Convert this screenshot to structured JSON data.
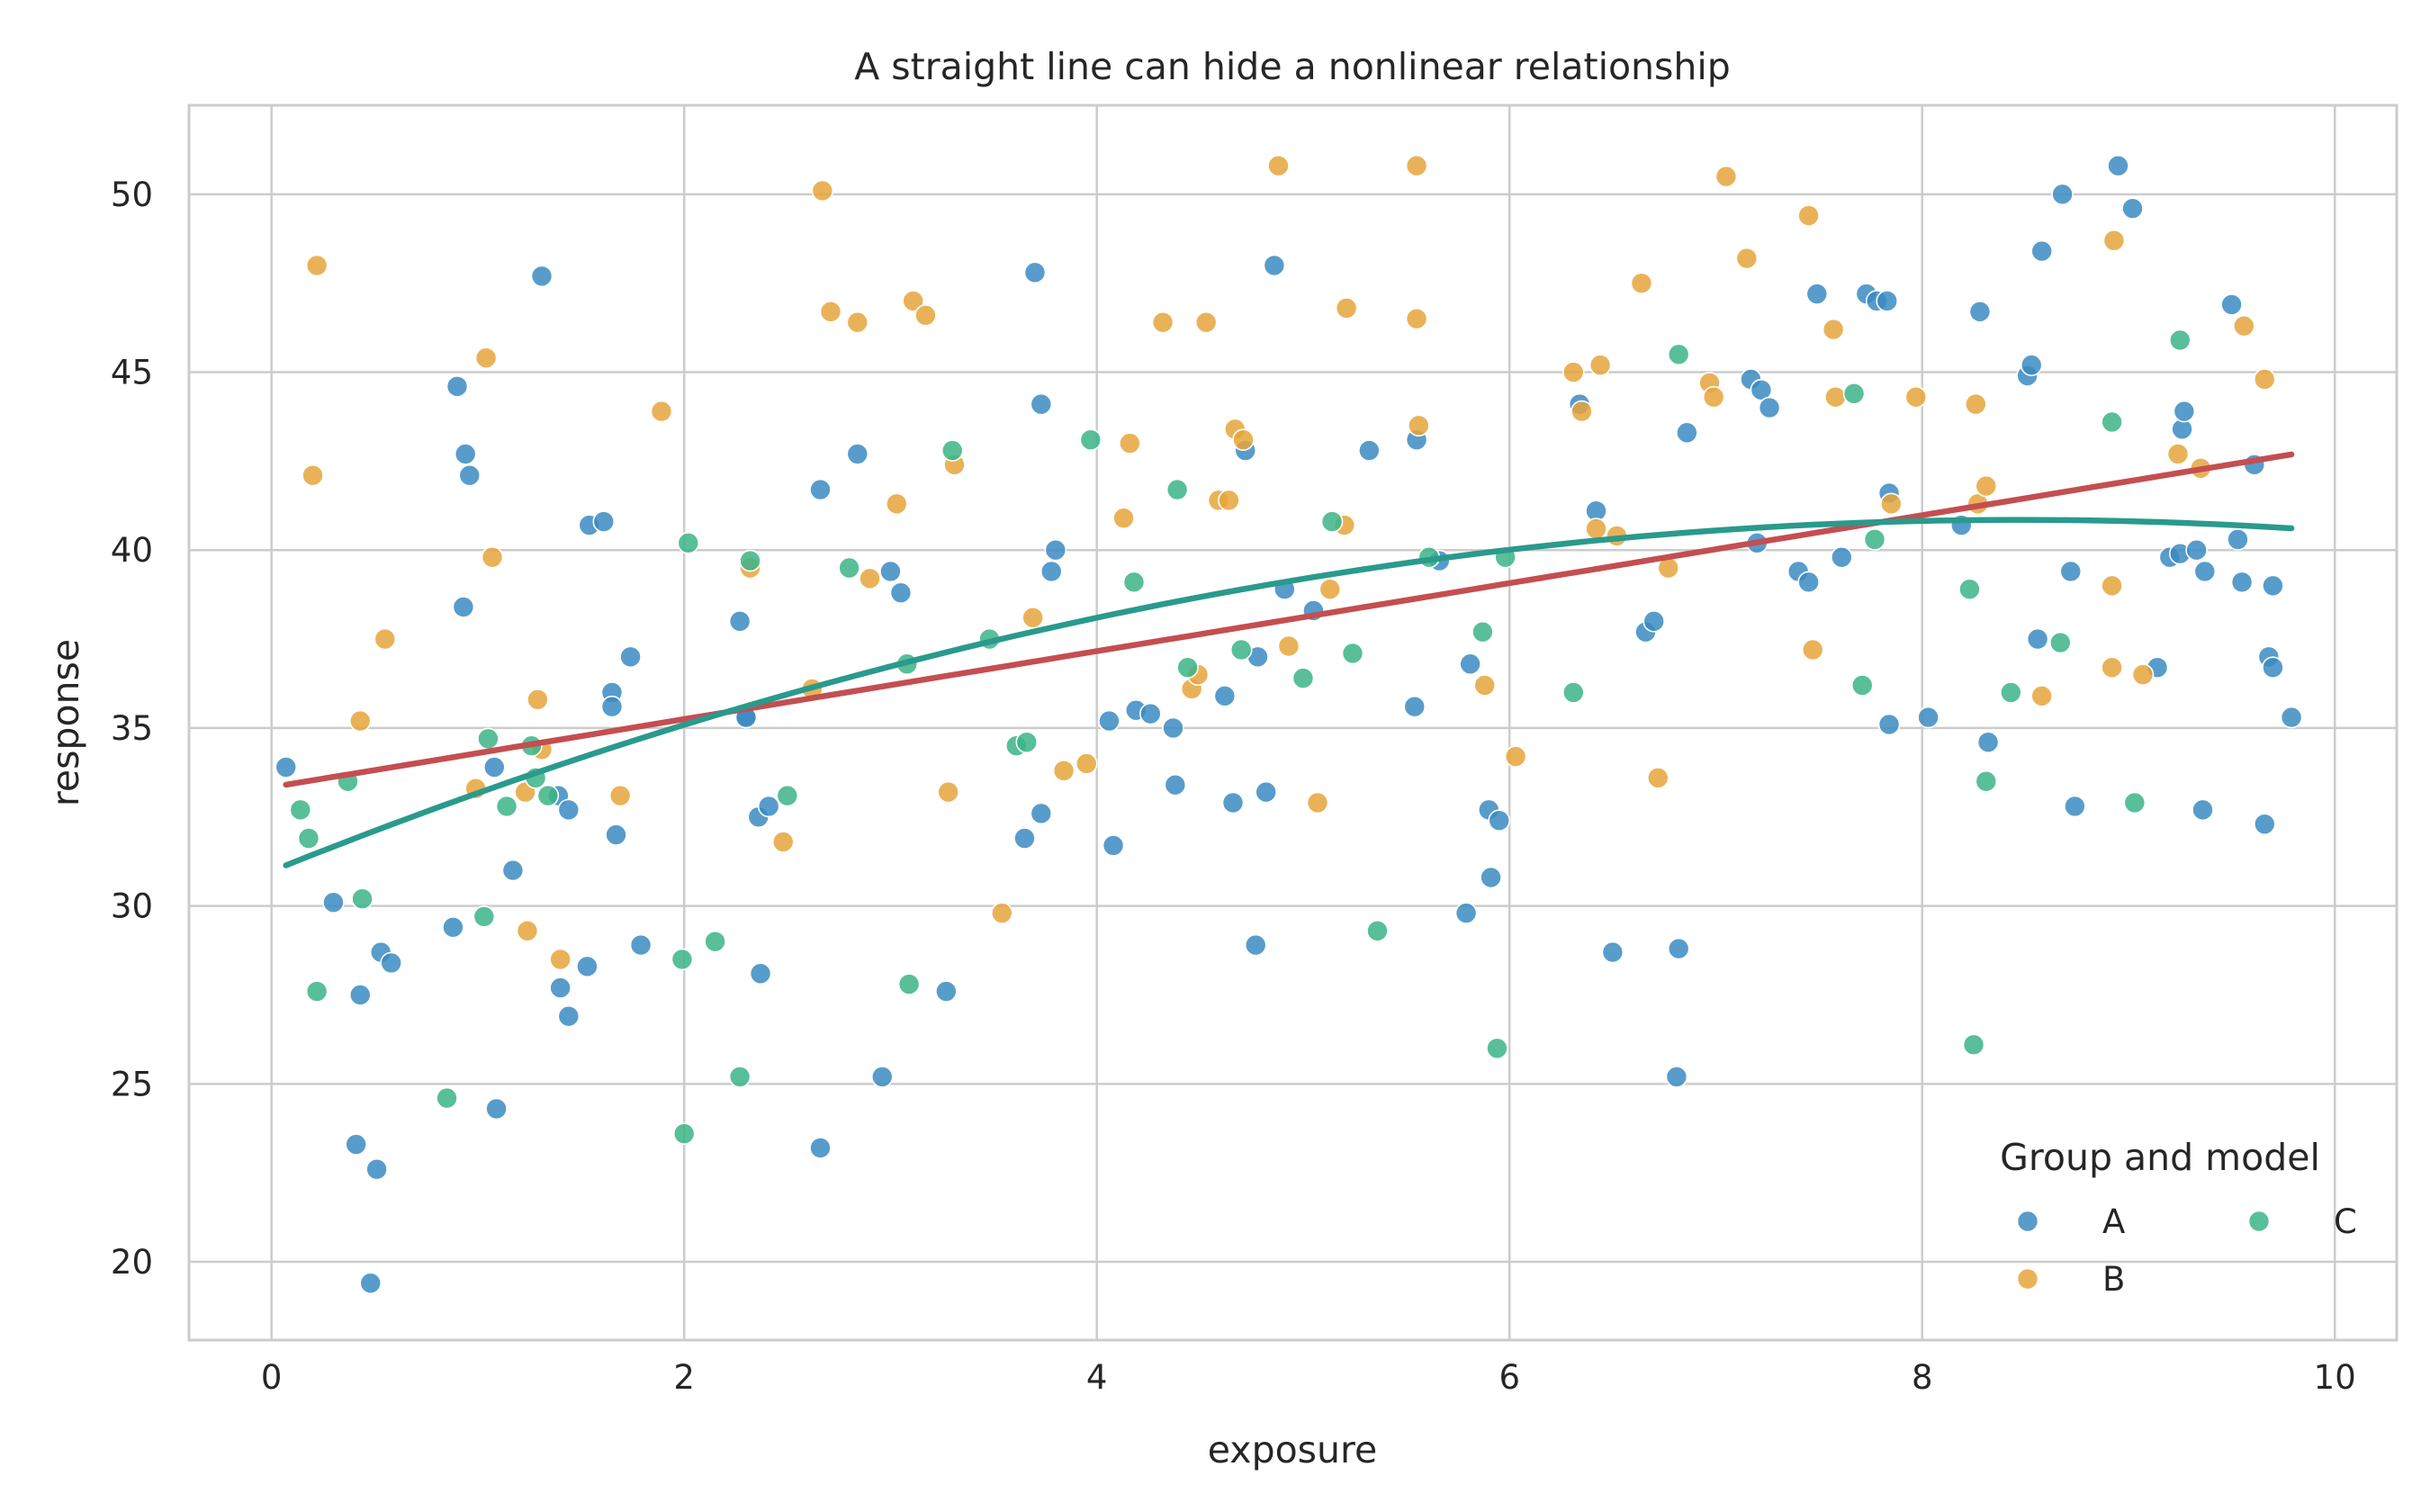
{
  "chart_data": {
    "type": "scatter",
    "title": "A straight line can hide a nonlinear relationship",
    "xlabel": "exposure",
    "ylabel": "response",
    "xlim": [
      -0.4,
      10.3
    ],
    "ylim": [
      17.8,
      52.5
    ],
    "x_ticks": [
      0,
      2,
      4,
      6,
      8,
      10
    ],
    "y_ticks": [
      20,
      25,
      30,
      35,
      40,
      45,
      50
    ],
    "grid": true,
    "legend": {
      "title": "Group and model",
      "placement": "bottom-right",
      "entries": [
        "A",
        "B",
        "C"
      ]
    },
    "colors": {
      "A": "#3b8bc2",
      "B": "#e6a53b",
      "C": "#3bb487",
      "linear": "#c44e52",
      "quadratic": "#2a9a8c"
    },
    "series": [
      {
        "name": "A",
        "points": [
          [
            0.07,
            33.9
          ],
          [
            0.3,
            30.1
          ],
          [
            0.41,
            23.3
          ],
          [
            0.43,
            27.5
          ],
          [
            0.48,
            19.4
          ],
          [
            0.51,
            22.6
          ],
          [
            0.53,
            28.7
          ],
          [
            0.58,
            28.4
          ],
          [
            0.88,
            29.4
          ],
          [
            0.9,
            44.6
          ],
          [
            0.93,
            38.4
          ],
          [
            0.94,
            42.7
          ],
          [
            0.96,
            42.1
          ],
          [
            1.08,
            33.9
          ],
          [
            1.09,
            24.3
          ],
          [
            1.17,
            31.0
          ],
          [
            1.31,
            47.7
          ],
          [
            1.39,
            33.1
          ],
          [
            1.4,
            27.7
          ],
          [
            1.44,
            26.9
          ],
          [
            1.44,
            32.7
          ],
          [
            1.53,
            28.3
          ],
          [
            1.54,
            40.7
          ],
          [
            1.61,
            40.8
          ],
          [
            1.65,
            36.0
          ],
          [
            1.65,
            35.6
          ],
          [
            1.67,
            32.0
          ],
          [
            1.74,
            37.0
          ],
          [
            1.79,
            28.9
          ],
          [
            2.27,
            38.0
          ],
          [
            2.3,
            35.3
          ],
          [
            2.3,
            35.3
          ],
          [
            2.36,
            32.5
          ],
          [
            2.37,
            28.1
          ],
          [
            2.41,
            32.8
          ],
          [
            2.66,
            23.2
          ],
          [
            2.66,
            41.7
          ],
          [
            2.84,
            42.7
          ],
          [
            2.96,
            25.2
          ],
          [
            3.0,
            39.4
          ],
          [
            3.05,
            38.8
          ],
          [
            3.27,
            27.6
          ],
          [
            3.65,
            31.9
          ],
          [
            3.7,
            47.8
          ],
          [
            3.73,
            44.1
          ],
          [
            3.73,
            32.6
          ],
          [
            3.78,
            39.4
          ],
          [
            3.8,
            40.0
          ],
          [
            4.06,
            35.2
          ],
          [
            4.08,
            31.7
          ],
          [
            4.19,
            35.5
          ],
          [
            4.26,
            35.4
          ],
          [
            4.38,
            33.4
          ],
          [
            4.37,
            35.0
          ],
          [
            4.62,
            35.9
          ],
          [
            4.66,
            32.9
          ],
          [
            4.72,
            42.8
          ],
          [
            4.77,
            28.9
          ],
          [
            4.78,
            37.0
          ],
          [
            4.82,
            33.2
          ],
          [
            4.86,
            48.0
          ],
          [
            4.91,
            38.9
          ],
          [
            5.05,
            38.3
          ],
          [
            5.32,
            42.8
          ],
          [
            5.54,
            35.6
          ],
          [
            5.55,
            43.1
          ],
          [
            5.66,
            39.7
          ],
          [
            5.79,
            29.8
          ],
          [
            5.81,
            36.8
          ],
          [
            5.9,
            32.7
          ],
          [
            5.91,
            30.8
          ],
          [
            5.95,
            32.4
          ],
          [
            6.34,
            44.1
          ],
          [
            6.42,
            41.1
          ],
          [
            6.5,
            28.7
          ],
          [
            6.66,
            37.7
          ],
          [
            6.7,
            38.0
          ],
          [
            6.81,
            25.2
          ],
          [
            6.82,
            28.8
          ],
          [
            6.86,
            43.3
          ],
          [
            7.17,
            44.8
          ],
          [
            7.2,
            40.2
          ],
          [
            7.22,
            44.5
          ],
          [
            7.26,
            44.0
          ],
          [
            7.4,
            39.4
          ],
          [
            7.45,
            39.1
          ],
          [
            7.49,
            47.2
          ],
          [
            7.61,
            39.8
          ],
          [
            7.73,
            47.2
          ],
          [
            7.78,
            47.0
          ],
          [
            7.83,
            47.0
          ],
          [
            7.84,
            41.6
          ],
          [
            7.84,
            35.1
          ],
          [
            8.03,
            35.3
          ],
          [
            8.19,
            40.7
          ],
          [
            8.28,
            46.7
          ],
          [
            8.32,
            34.6
          ],
          [
            8.51,
            44.9
          ],
          [
            8.53,
            45.2
          ],
          [
            8.56,
            37.5
          ],
          [
            8.58,
            48.4
          ],
          [
            8.68,
            50.0
          ],
          [
            8.72,
            39.4
          ],
          [
            8.74,
            32.8
          ],
          [
            8.95,
            50.8
          ],
          [
            9.02,
            49.6
          ],
          [
            9.14,
            36.7
          ],
          [
            9.2,
            39.8
          ],
          [
            9.25,
            39.9
          ],
          [
            9.26,
            43.4
          ],
          [
            9.27,
            43.9
          ],
          [
            9.33,
            40.0
          ],
          [
            9.36,
            32.7
          ],
          [
            9.37,
            39.4
          ],
          [
            9.5,
            46.9
          ],
          [
            9.53,
            40.3
          ],
          [
            9.55,
            39.1
          ],
          [
            9.61,
            42.4
          ],
          [
            9.66,
            32.3
          ],
          [
            9.68,
            37.0
          ],
          [
            9.7,
            36.7
          ],
          [
            9.7,
            39.0
          ],
          [
            9.79,
            35.3
          ]
        ]
      },
      {
        "name": "B",
        "points": [
          [
            0.2,
            42.1
          ],
          [
            0.22,
            48.0
          ],
          [
            0.43,
            35.2
          ],
          [
            0.55,
            37.5
          ],
          [
            0.99,
            33.3
          ],
          [
            1.04,
            45.4
          ],
          [
            1.07,
            39.8
          ],
          [
            1.23,
            33.2
          ],
          [
            1.24,
            29.3
          ],
          [
            1.29,
            35.8
          ],
          [
            1.31,
            34.4
          ],
          [
            1.4,
            28.5
          ],
          [
            1.69,
            33.1
          ],
          [
            1.89,
            43.9
          ],
          [
            2.32,
            39.5
          ],
          [
            2.48,
            31.8
          ],
          [
            2.62,
            36.1
          ],
          [
            2.67,
            50.1
          ],
          [
            2.71,
            46.7
          ],
          [
            2.84,
            46.4
          ],
          [
            2.9,
            39.2
          ],
          [
            3.03,
            41.3
          ],
          [
            3.11,
            47.0
          ],
          [
            3.17,
            46.6
          ],
          [
            3.28,
            33.2
          ],
          [
            3.31,
            42.4
          ],
          [
            3.54,
            29.8
          ],
          [
            3.69,
            38.1
          ],
          [
            3.84,
            33.8
          ],
          [
            3.95,
            34.0
          ],
          [
            4.13,
            40.9
          ],
          [
            4.16,
            43.0
          ],
          [
            4.32,
            46.4
          ],
          [
            4.46,
            36.1
          ],
          [
            4.49,
            36.5
          ],
          [
            4.53,
            46.4
          ],
          [
            4.59,
            41.4
          ],
          [
            4.64,
            41.4
          ],
          [
            4.67,
            43.4
          ],
          [
            4.71,
            43.1
          ],
          [
            4.88,
            50.8
          ],
          [
            4.93,
            37.3
          ],
          [
            5.07,
            32.9
          ],
          [
            5.13,
            38.9
          ],
          [
            5.2,
            40.7
          ],
          [
            5.21,
            46.8
          ],
          [
            5.55,
            50.8
          ],
          [
            5.55,
            46.5
          ],
          [
            5.56,
            43.5
          ],
          [
            5.88,
            36.2
          ],
          [
            6.03,
            34.2
          ],
          [
            6.31,
            45.0
          ],
          [
            6.35,
            43.9
          ],
          [
            6.42,
            40.6
          ],
          [
            6.44,
            45.2
          ],
          [
            6.52,
            40.4
          ],
          [
            6.64,
            47.5
          ],
          [
            6.72,
            33.6
          ],
          [
            6.77,
            39.5
          ],
          [
            6.97,
            44.7
          ],
          [
            6.99,
            44.3
          ],
          [
            7.05,
            50.5
          ],
          [
            7.15,
            48.2
          ],
          [
            7.45,
            49.4
          ],
          [
            7.47,
            37.2
          ],
          [
            7.57,
            46.2
          ],
          [
            7.58,
            44.3
          ],
          [
            7.85,
            41.3
          ],
          [
            7.97,
            44.3
          ],
          [
            8.26,
            44.1
          ],
          [
            8.27,
            41.3
          ],
          [
            8.31,
            41.8
          ],
          [
            8.58,
            35.9
          ],
          [
            8.92,
            39.0
          ],
          [
            8.92,
            36.7
          ],
          [
            8.93,
            48.7
          ],
          [
            9.07,
            36.5
          ],
          [
            9.24,
            42.7
          ],
          [
            9.35,
            42.3
          ],
          [
            9.56,
            46.3
          ],
          [
            9.66,
            44.8
          ]
        ]
      },
      {
        "name": "C",
        "points": [
          [
            0.14,
            32.7
          ],
          [
            0.18,
            31.9
          ],
          [
            0.22,
            27.6
          ],
          [
            0.37,
            33.5
          ],
          [
            0.44,
            30.2
          ],
          [
            0.85,
            24.6
          ],
          [
            1.03,
            29.7
          ],
          [
            1.05,
            34.7
          ],
          [
            1.14,
            32.8
          ],
          [
            1.26,
            34.5
          ],
          [
            1.28,
            33.6
          ],
          [
            1.34,
            33.1
          ],
          [
            1.99,
            28.5
          ],
          [
            2.0,
            23.6
          ],
          [
            2.02,
            40.2
          ],
          [
            2.15,
            29.0
          ],
          [
            2.27,
            25.2
          ],
          [
            2.32,
            39.7
          ],
          [
            2.5,
            33.1
          ],
          [
            2.8,
            39.5
          ],
          [
            3.08,
            36.8
          ],
          [
            3.09,
            27.8
          ],
          [
            3.3,
            42.8
          ],
          [
            3.48,
            37.5
          ],
          [
            3.61,
            34.5
          ],
          [
            3.66,
            34.6
          ],
          [
            3.97,
            43.1
          ],
          [
            4.18,
            39.1
          ],
          [
            4.39,
            41.7
          ],
          [
            4.44,
            36.7
          ],
          [
            4.7,
            37.2
          ],
          [
            5.0,
            36.4
          ],
          [
            5.14,
            40.8
          ],
          [
            5.24,
            37.1
          ],
          [
            5.36,
            29.3
          ],
          [
            5.61,
            39.8
          ],
          [
            5.87,
            37.7
          ],
          [
            5.94,
            26.0
          ],
          [
            5.98,
            39.8
          ],
          [
            6.31,
            36.0
          ],
          [
            6.82,
            45.5
          ],
          [
            7.67,
            44.4
          ],
          [
            7.71,
            36.2
          ],
          [
            7.77,
            40.3
          ],
          [
            8.23,
            38.9
          ],
          [
            8.25,
            26.1
          ],
          [
            8.31,
            33.5
          ],
          [
            8.43,
            36.0
          ],
          [
            8.67,
            37.4
          ],
          [
            8.92,
            43.6
          ],
          [
            9.03,
            32.9
          ],
          [
            9.25,
            45.9
          ]
        ]
      }
    ],
    "fits": [
      {
        "kind": "linear",
        "x_range": [
          0.07,
          9.79
        ],
        "coef": [
          33.34,
          0.955
        ]
      },
      {
        "kind": "quadratic",
        "x_range": [
          0.07,
          9.79
        ],
        "coef": [
          30.98,
          2.33,
          -0.1375
        ]
      }
    ]
  }
}
